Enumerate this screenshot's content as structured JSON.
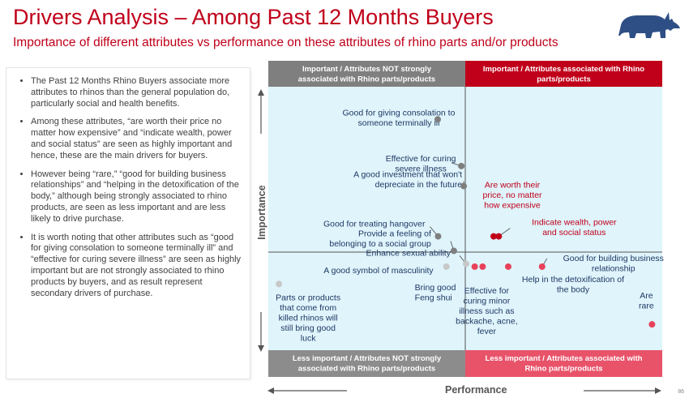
{
  "header": {
    "title": "Drivers Analysis – Among Past 12 Months Buyers",
    "subtitle": "Importance of different attributes vs performance on these attributes of rhino parts and/or products"
  },
  "brand": {
    "logo_icon": "rhino-logo-icon",
    "logo_color": "#2e4f86"
  },
  "bullets": [
    "The Past 12 Months Rhino Buyers associate more attributes to rhinos than the general population do, particularly social and health benefits.",
    "Among these attributes, “are worth their price no matter how expensive” and “indicate wealth, power and social status” are seen as highly important and hence, these are the main drivers for buyers.",
    "However being “rare,” “good for building business relationships” and “helping in the detoxification of the body,” although being strongly associated to rhino products, are seen as less important and are less likely to drive purchase.",
    "It is worth noting that other attributes such as “good for giving consolation to someone terminally ill” and “effective for curing severe illness” are seen as highly important but are not strongly associated to rhino products by buyers, and as result represent secondary drivers of purchase."
  ],
  "page_number": "86",
  "chart_data": {
    "type": "scatter",
    "xlabel": "Performance",
    "ylabel": "Importance",
    "xlim": [
      0,
      100
    ],
    "ylim": [
      0,
      100
    ],
    "quadrants": {
      "top_left": "Important / Attributes NOT strongly associated with Rhino parts/products",
      "top_right": "Important / Attributes associated with Rhino parts/products",
      "bottom_left": "Less important / Attributes NOT strongly associated with Rhino parts/products",
      "bottom_right": "Less important / Attributes associated with Rhino parts/products"
    },
    "colors": {
      "plot_bg": "#dff4fb",
      "not_associated_marker": "#7f7f7f",
      "less_important_not_associated_marker": "#c8c8c8",
      "associated_marker": "#e8425a",
      "key_driver_marker": "#c0001a",
      "top_left_header": "#7f7f7f",
      "top_right_header": "#c0001a",
      "bottom_left_header": "#8c8c8c",
      "bottom_right_header": "#e8536a"
    },
    "points": [
      {
        "label": "Good for giving consolation to someone terminally ill",
        "x": 43,
        "y": 87.6,
        "group": "not_associated"
      },
      {
        "label": "Effective for curing severe illness",
        "x": 49,
        "y": 69.9,
        "group": "not_associated"
      },
      {
        "label": "A good investment that won't depreciate in the future",
        "x": 49.6,
        "y": 62.3,
        "group": "not_associated"
      },
      {
        "label": "Good for treating hangover",
        "x": 43.1,
        "y": 43.2,
        "group": "not_associated"
      },
      {
        "label": "Provide a feeling of belonging to a social group",
        "x": 47.1,
        "y": 37.7,
        "group": "not_associated"
      },
      {
        "label": "Enhance sexual ability",
        "x": 50.2,
        "y": 32.8,
        "group": "less_important_not_associated"
      },
      {
        "label": "A good symbol of masculinity",
        "x": 45.2,
        "y": 31.7,
        "group": "less_important_not_associated"
      },
      {
        "label": "Parts or products that come from killed rhinos will still bring good luck",
        "x": 2.7,
        "y": 25.1,
        "group": "less_important_not_associated"
      },
      {
        "label": "Bring good Feng shui",
        "x": 52.4,
        "y": 31.7,
        "group": "associated"
      },
      {
        "label": "Effective for curing minor illness such as backache, acne, fever",
        "x": 54.4,
        "y": 31.7,
        "group": "associated"
      },
      {
        "label": "Help in the detoxification of the body",
        "x": 60.9,
        "y": 31.7,
        "group": "associated"
      },
      {
        "label": "Good for building business relationship",
        "x": 69.5,
        "y": 31.7,
        "group": "associated"
      },
      {
        "label": "Are rare",
        "x": 97.4,
        "y": 9.8,
        "group": "associated"
      },
      {
        "label": "Are worth their price, no matter how expensive",
        "x": 57.2,
        "y": 43.2,
        "group": "key_driver"
      },
      {
        "label": "Indicate wealth, power and social status",
        "x": 58.5,
        "y": 43.2,
        "group": "key_driver"
      }
    ]
  }
}
